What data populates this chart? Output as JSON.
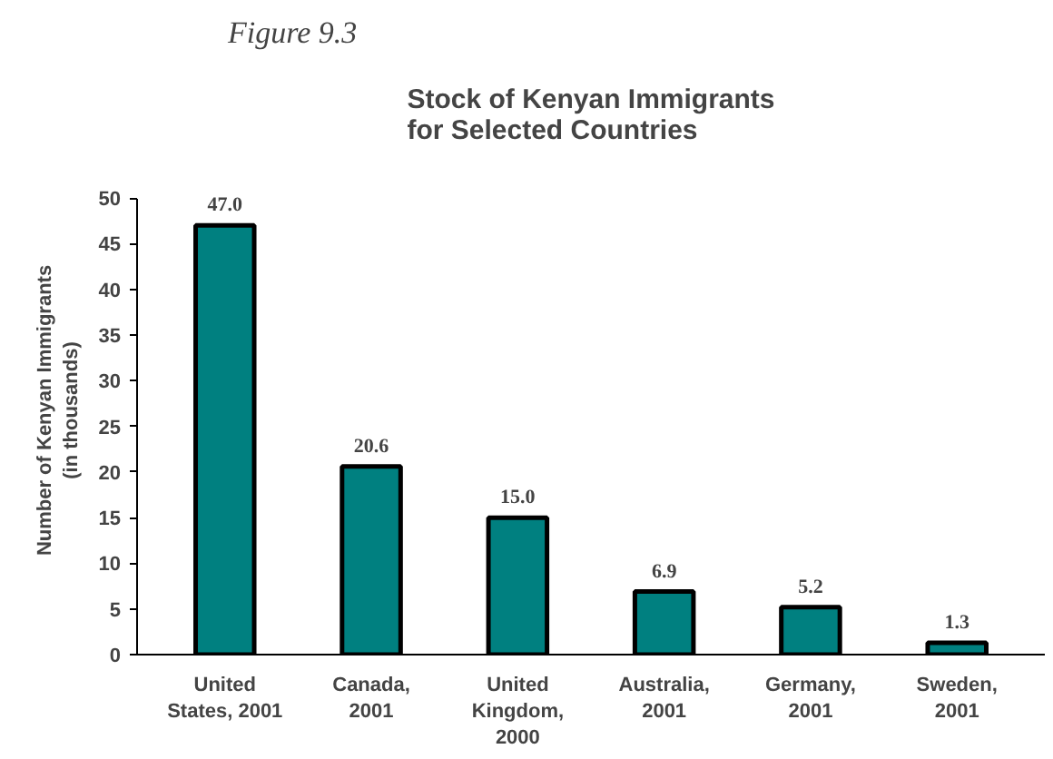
{
  "chart_data": {
    "type": "bar",
    "title": "Stock of Kenyan Immigrants\nfor Selected Countries",
    "ylabel": "Number of Kenyan Immigrants\n(in thousands)",
    "annotations": [
      "Figure 9.3"
    ],
    "categories": [
      "United\nStates, 2001",
      "Canada,\n2001",
      "United\nKingdom,\n2000",
      "Australia,\n2001",
      "Germany,\n2001",
      "Sweden,\n2001"
    ],
    "values": [
      47.0,
      20.6,
      15.0,
      6.9,
      5.2,
      1.3
    ],
    "value_labels": [
      "47.0",
      "20.6",
      "15.0",
      "6.9",
      "5.2",
      "1.3"
    ],
    "color": "#008080",
    "ylim": [
      0,
      50
    ],
    "yticks": [
      0,
      5,
      10,
      15,
      20,
      25,
      30,
      35,
      40,
      45,
      50
    ],
    "grid": false
  }
}
